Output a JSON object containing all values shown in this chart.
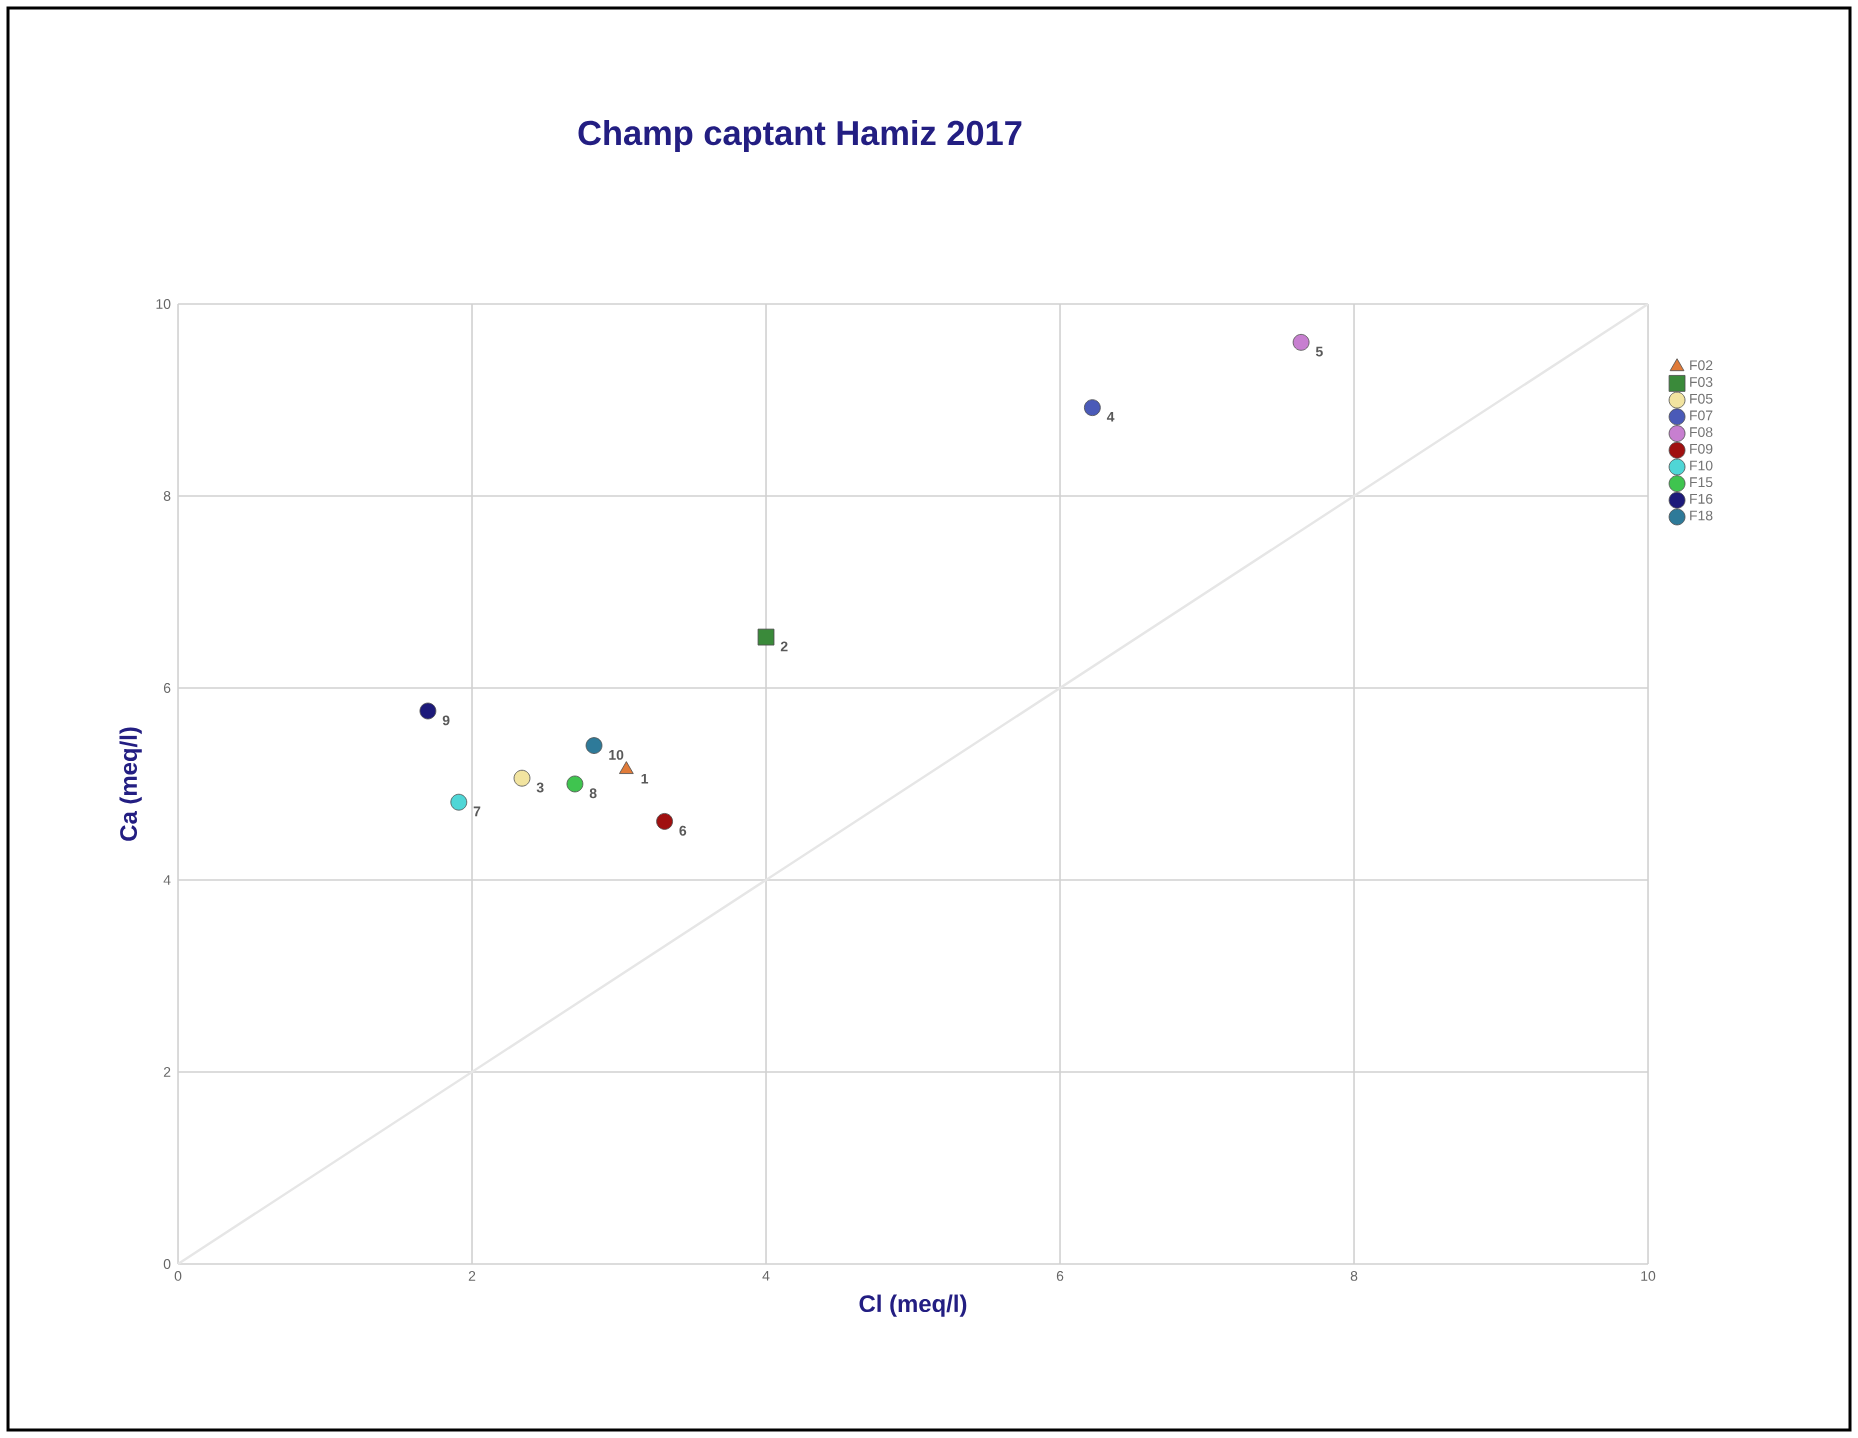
{
  "chart_data": {
    "type": "scatter",
    "title": "Champ captant Hamiz 2017",
    "xlabel": "Cl (meq/l)",
    "ylabel": "Ca (meq/l)",
    "xlim": [
      0,
      10
    ],
    "ylim": [
      0,
      10
    ],
    "xticks": [
      0,
      2,
      4,
      6,
      8,
      10
    ],
    "yticks": [
      0,
      2,
      4,
      6,
      8,
      10
    ],
    "grid": true,
    "legend": "right",
    "series": [
      {
        "type": "line",
        "color": "#e6e6e6",
        "x": [
          0,
          10
        ],
        "values": [
          0,
          10
        ],
        "marker": "none"
      },
      {
        "name": "F02",
        "color": "#e07b39",
        "marker": "triangle",
        "x": [
          3.05
        ],
        "values": [
          5.15
        ]
      },
      {
        "name": "F03",
        "color": "#3a8a3a",
        "marker": "square",
        "x": [
          4.0
        ],
        "values": [
          6.53
        ]
      },
      {
        "name": "F05",
        "color": "#f2e4a0",
        "marker": "circle",
        "x": [
          2.34
        ],
        "values": [
          5.06
        ]
      },
      {
        "name": "F07",
        "color": "#4a5ab8",
        "marker": "circle",
        "x": [
          6.22
        ],
        "values": [
          8.92
        ]
      },
      {
        "name": "F08",
        "color": "#c77fd0",
        "marker": "circle",
        "x": [
          7.64
        ],
        "values": [
          9.6
        ]
      },
      {
        "name": "F09",
        "color": "#a01010",
        "marker": "circle",
        "x": [
          3.31
        ],
        "values": [
          4.61
        ]
      },
      {
        "name": "F10",
        "color": "#4fd6d6",
        "marker": "circle",
        "x": [
          1.91
        ],
        "values": [
          4.81
        ]
      },
      {
        "name": "F15",
        "color": "#3fc44f",
        "marker": "circle",
        "x": [
          2.7
        ],
        "values": [
          5.0
        ]
      },
      {
        "name": "F16",
        "color": "#1d1a7a",
        "marker": "circle",
        "x": [
          1.7
        ],
        "values": [
          5.76
        ]
      },
      {
        "name": "F18",
        "color": "#2e7a99",
        "marker": "circle",
        "x": [
          2.83
        ],
        "values": [
          5.4
        ]
      }
    ],
    "annotations": [
      {
        "text": "1",
        "x": 3.05,
        "y": 5.15
      },
      {
        "text": "2",
        "x": 4.0,
        "y": 6.53
      },
      {
        "text": "3",
        "x": 2.34,
        "y": 5.06
      },
      {
        "text": "4",
        "x": 6.22,
        "y": 8.92
      },
      {
        "text": "5",
        "x": 7.64,
        "y": 9.6
      },
      {
        "text": "6",
        "x": 3.31,
        "y": 4.61
      },
      {
        "text": "7",
        "x": 1.91,
        "y": 4.81
      },
      {
        "text": "8",
        "x": 2.7,
        "y": 5.0
      },
      {
        "text": "9",
        "x": 1.7,
        "y": 5.76
      },
      {
        "text": "10",
        "x": 2.83,
        "y": 5.4
      }
    ]
  }
}
